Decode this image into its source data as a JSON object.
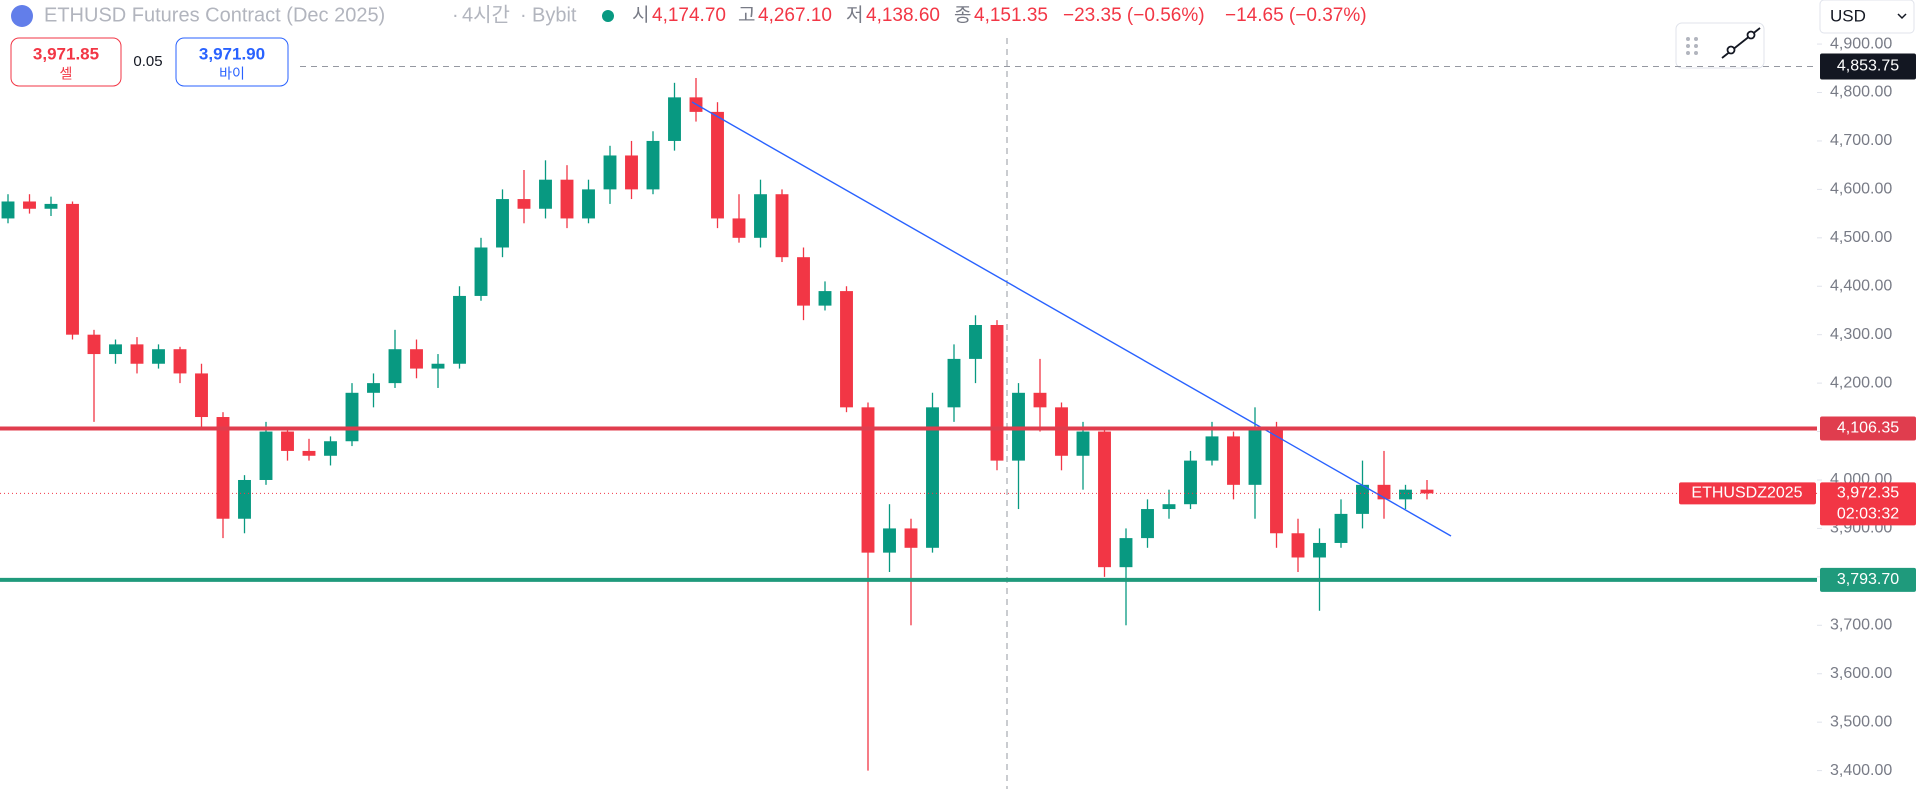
{
  "header": {
    "symbol_title": "ETHUSD Futures Contract (Dec 2025)",
    "interval": "4시간",
    "exchange": "Bybit",
    "open_label": "시",
    "open": "4,174.70",
    "high_label": "고",
    "high": "4,267.10",
    "low_label": "저",
    "low": "4,138.60",
    "close_label": "종",
    "close": "4,151.35",
    "change": "−23.35 (−0.56%)",
    "change2": "−14.65 (−0.37%)"
  },
  "order_panel": {
    "sell_price": "3,971.85",
    "sell_label": "셀",
    "spread": "0.05",
    "buy_price": "3,971.90",
    "buy_label": "바이"
  },
  "currency": "USD",
  "chart_data": {
    "type": "candlestick",
    "up_color": "#089981",
    "down_color": "#f23645",
    "ylim": [
      3362,
      4991
    ],
    "yticks": [
      {
        "value": 3400,
        "label": "3,400.00"
      },
      {
        "value": 3500,
        "label": "3,500.00"
      },
      {
        "value": 3600,
        "label": "3,600.00"
      },
      {
        "value": 3700,
        "label": "3,700.00"
      },
      {
        "value": 3800,
        "label": "3,800.00"
      },
      {
        "value": 3900,
        "label": "3,900.00"
      },
      {
        "value": 4000,
        "label": "4,000.00"
      },
      {
        "value": 4100,
        "label": "4,100.00"
      },
      {
        "value": 4200,
        "label": "4,200.00"
      },
      {
        "value": 4300,
        "label": "4,300.00"
      },
      {
        "value": 4400,
        "label": "4,400.00"
      },
      {
        "value": 4500,
        "label": "4,500.00"
      },
      {
        "value": 4600,
        "label": "4,600.00"
      },
      {
        "value": 4700,
        "label": "4,700.00"
      },
      {
        "value": 4800,
        "label": "4,800.00"
      },
      {
        "value": 4900,
        "label": "4,900.00"
      }
    ],
    "open": [
      4540,
      4575,
      4560,
      4570,
      4300,
      4260,
      4280,
      4240,
      4270,
      4220,
      4130,
      3920,
      4000,
      4100,
      4060,
      4050,
      4080,
      4180,
      4200,
      4270,
      4230,
      4240,
      4380,
      4480,
      4580,
      4560,
      4620,
      4540,
      4600,
      4670,
      4600,
      4700,
      4790,
      4760,
      4540,
      4500,
      4590,
      4460,
      4360,
      4390,
      4150,
      3850,
      3900,
      3860,
      4150,
      4250,
      4320,
      4040,
      4180,
      4150,
      4050,
      4100,
      3820,
      3880,
      3940,
      3950,
      4040,
      4090,
      3990,
      4110,
      3890,
      3840,
      3870,
      3930,
      3990,
      3960,
      3980
    ],
    "high": [
      4590,
      4590,
      4585,
      4575,
      4310,
      4290,
      4295,
      4280,
      4275,
      4240,
      4140,
      4010,
      4120,
      4110,
      4085,
      4090,
      4200,
      4220,
      4310,
      4290,
      4260,
      4400,
      4500,
      4600,
      4640,
      4660,
      4650,
      4620,
      4690,
      4700,
      4720,
      4820,
      4830,
      4780,
      4590,
      4620,
      4600,
      4480,
      4410,
      4400,
      4160,
      3950,
      3920,
      4180,
      4280,
      4340,
      4330,
      4200,
      4250,
      4160,
      4120,
      4110,
      3900,
      3960,
      3980,
      4060,
      4120,
      4100,
      4150,
      4120,
      3920,
      3900,
      3960,
      4040,
      4060,
      3990,
      4000
    ],
    "low": [
      4530,
      4550,
      4545,
      4290,
      4120,
      4240,
      4220,
      4230,
      4200,
      4110,
      3880,
      3890,
      3990,
      4040,
      4040,
      4030,
      4070,
      4150,
      4190,
      4210,
      4190,
      4230,
      4370,
      4460,
      4530,
      4540,
      4520,
      4530,
      4570,
      4580,
      4590,
      4680,
      4740,
      4520,
      4490,
      4480,
      4450,
      4330,
      4350,
      4140,
      3400,
      3810,
      3700,
      3850,
      4120,
      4200,
      4020,
      3940,
      4100,
      4020,
      3980,
      3800,
      3700,
      3860,
      3920,
      3940,
      4030,
      3960,
      3920,
      3860,
      3810,
      3730,
      3860,
      3900,
      3920,
      3940,
      3960
    ],
    "close": [
      4575,
      4560,
      4570,
      4300,
      4260,
      4280,
      4240,
      4270,
      4220,
      4130,
      3920,
      4000,
      4100,
      4060,
      4050,
      4080,
      4180,
      4200,
      4270,
      4230,
      4240,
      4380,
      4480,
      4580,
      4560,
      4620,
      4540,
      4600,
      4670,
      4600,
      4700,
      4790,
      4760,
      4540,
      4500,
      4590,
      4460,
      4360,
      4390,
      4150,
      3850,
      3900,
      3860,
      4150,
      4250,
      4320,
      4040,
      4180,
      4150,
      4050,
      4100,
      3820,
      3880,
      3940,
      3950,
      4040,
      4090,
      3990,
      4110,
      3890,
      3840,
      3870,
      3930,
      3990,
      3960,
      3980,
      3972.35
    ],
    "levels": [
      {
        "value": 4106.35,
        "label": "4,106.35",
        "color": "#e03d4e"
      },
      {
        "value": 3793.7,
        "label": "3,793.70",
        "color": "#1f9a7c"
      }
    ],
    "crosshair": {
      "value": 4853.75,
      "label": "4,853.75"
    },
    "last_price_label": "3,972.35",
    "symbol_code": "ETHUSDZ2025",
    "countdown": "02:03:32"
  }
}
